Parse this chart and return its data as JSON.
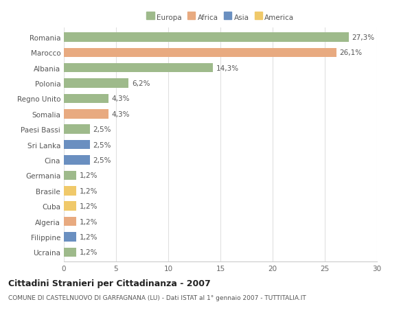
{
  "countries": [
    "Romania",
    "Marocco",
    "Albania",
    "Polonia",
    "Regno Unito",
    "Somalia",
    "Paesi Bassi",
    "Sri Lanka",
    "Cina",
    "Germania",
    "Brasile",
    "Cuba",
    "Algeria",
    "Filippine",
    "Ucraina"
  ],
  "values": [
    27.3,
    26.1,
    14.3,
    6.2,
    4.3,
    4.3,
    2.5,
    2.5,
    2.5,
    1.2,
    1.2,
    1.2,
    1.2,
    1.2,
    1.2
  ],
  "labels": [
    "27,3%",
    "26,1%",
    "14,3%",
    "6,2%",
    "4,3%",
    "4,3%",
    "2,5%",
    "2,5%",
    "2,5%",
    "1,2%",
    "1,2%",
    "1,2%",
    "1,2%",
    "1,2%",
    "1,2%"
  ],
  "continents": [
    "Europa",
    "Africa",
    "Europa",
    "Europa",
    "Europa",
    "Africa",
    "Europa",
    "Asia",
    "Asia",
    "Europa",
    "America",
    "America",
    "Africa",
    "Asia",
    "Europa"
  ],
  "continent_colors": {
    "Europa": "#9eba8b",
    "Africa": "#e8aa80",
    "Asia": "#6a8fc0",
    "America": "#f0c96a"
  },
  "legend_labels": [
    "Europa",
    "Africa",
    "Asia",
    "America"
  ],
  "legend_colors": [
    "#9eba8b",
    "#e8aa80",
    "#6a8fc0",
    "#f0c96a"
  ],
  "title": "Cittadini Stranieri per Cittadinanza - 2007",
  "subtitle": "COMUNE DI CASTELNUOVO DI GARFAGNANA (LU) - Dati ISTAT al 1° gennaio 2007 - TUTTITALIA.IT",
  "xlim": [
    0,
    30
  ],
  "xticks": [
    0,
    5,
    10,
    15,
    20,
    25,
    30
  ],
  "background_color": "#ffffff",
  "grid_color": "#e0e0e0",
  "bar_height": 0.6,
  "label_fontsize": 7.5,
  "tick_fontsize": 7.5,
  "title_fontsize": 9,
  "subtitle_fontsize": 6.5
}
